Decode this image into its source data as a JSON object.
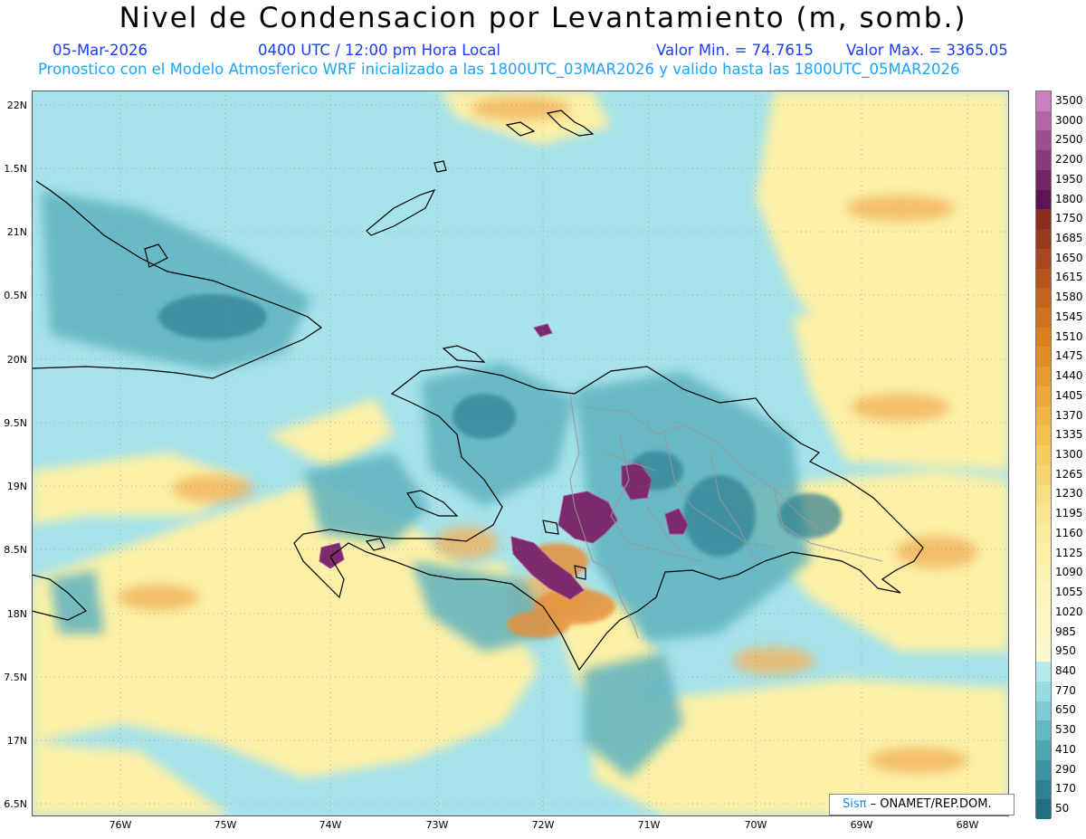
{
  "header": {
    "title": "Nivel de Condensacion por Levantamiento (m, somb.)",
    "date": "05-Mar-2026",
    "time": "0400 UTC / 12:00 pm Hora Local",
    "valmin": "Valor Min. = 74.7615",
    "valmax": "Valor Max. = 3365.05",
    "forecast": "Pronostico con el Modelo Atmosferico WRF inicializado a las 1800UTC_03MAR2026 y valido hasta las  1800UTC_05MAR2026"
  },
  "map": {
    "lat_labels": [
      "22N",
      "1.5N",
      "21N",
      "0.5N",
      "20N",
      "9.5N",
      "19N",
      "8.5N",
      "18N",
      "7.5N",
      "17N",
      "6.5N"
    ],
    "lon_labels": [
      "76W",
      "75W",
      "74W",
      "73W",
      "72W",
      "71W",
      "70W",
      "69W",
      "68W"
    ],
    "colors": {
      "low_cyan": "#a7e3ea",
      "mid_teal": "#5fb3c0",
      "dark_teal": "#2f7f93",
      "yellow": "#fbf0a6",
      "orange": "#f2b25c",
      "deep_purple": "#7b2a6c",
      "coast_line": "#000000",
      "border_line": "#999999"
    }
  },
  "colorbar": {
    "labels": [
      "3500",
      "3000",
      "2500",
      "2200",
      "1950",
      "1800",
      "1750",
      "1685",
      "1650",
      "1615",
      "1580",
      "1545",
      "1510",
      "1475",
      "1440",
      "1405",
      "1370",
      "1335",
      "1300",
      "1265",
      "1230",
      "1195",
      "1160",
      "1125",
      "1090",
      "1055",
      "1020",
      "985",
      "950",
      "840",
      "770",
      "650",
      "530",
      "410",
      "290",
      "170",
      "50"
    ],
    "colors": [
      "#c77fc2",
      "#b266aa",
      "#9c4f93",
      "#87397d",
      "#722568",
      "#5c1452",
      "#8c2d1f",
      "#9a3a1d",
      "#a8471c",
      "#b6551b",
      "#c4631b",
      "#cf711d",
      "#d97f22",
      "#e08c29",
      "#e69a32",
      "#eca73d",
      "#f0b449",
      "#f3c056",
      "#f5cb64",
      "#f7d573",
      "#f9df82",
      "#fae691",
      "#fbeb9c",
      "#fcefa6",
      "#fdf2b0",
      "#fdf4b9",
      "#fdf6c1",
      "#fdf7c8",
      "#fdf8cd",
      "#b7e9ef",
      "#99dbe3",
      "#7ccbd5",
      "#62b9c4",
      "#4ea6b3",
      "#3d93a2",
      "#2e8191",
      "#1f6f80"
    ]
  },
  "credit": {
    "brand": "Sis",
    "pi": "π",
    "org": " – ONAMET/REP.DOM."
  }
}
